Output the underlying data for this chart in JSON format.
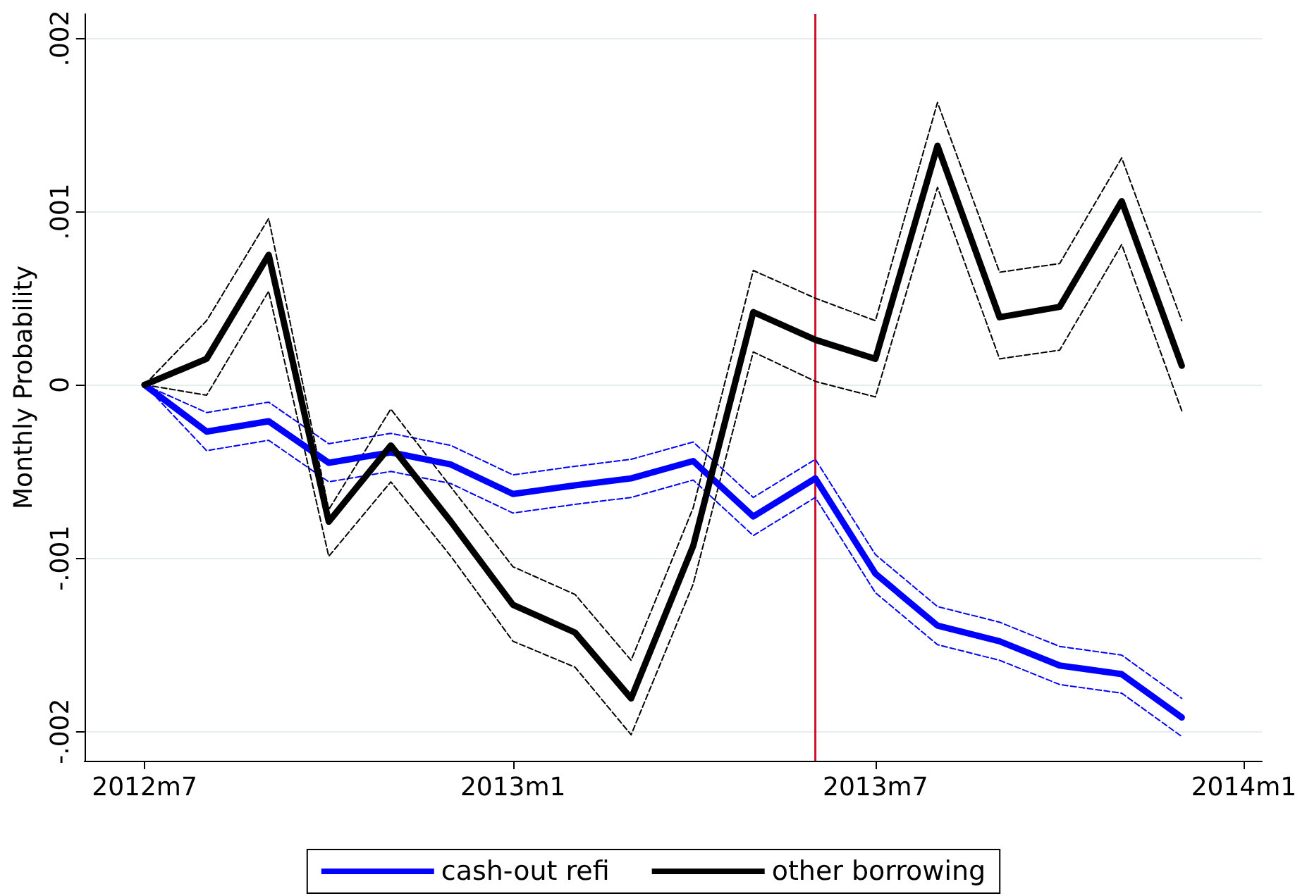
{
  "chart_data": {
    "type": "line",
    "ylabel": "Monthly Probability",
    "x": [
      "2012-07",
      "2012-08",
      "2012-09",
      "2012-10",
      "2012-11",
      "2012-12",
      "2013-01",
      "2013-02",
      "2013-03",
      "2013-04",
      "2013-05",
      "2013-06",
      "2013-07",
      "2013-08",
      "2013-09",
      "2013-10",
      "2013-11",
      "2013-12"
    ],
    "xlim": [
      "2012-06",
      "2014-01-10"
    ],
    "xticks": [
      {
        "value": "2012-07",
        "label": "2012m7"
      },
      {
        "value": "2013-01",
        "label": "2013m1"
      },
      {
        "value": "2013-07",
        "label": "2013m7"
      },
      {
        "value": "2014-01",
        "label": "2014m1"
      }
    ],
    "ylim": [
      -0.00217,
      0.00214
    ],
    "yticks": [
      {
        "value": -0.002,
        "label": "-.002"
      },
      {
        "value": -0.001,
        "label": "-.001"
      },
      {
        "value": 0,
        "label": "0"
      },
      {
        "value": 0.001,
        "label": ".001"
      },
      {
        "value": 0.002,
        "label": ".002"
      }
    ],
    "series": [
      {
        "color": "#0000ff",
        "line_style": "dashed",
        "values": [
          0,
          -0.00016,
          -0.0001,
          -0.00034,
          -0.00028,
          -0.00035,
          -0.00052,
          -0.00047,
          -0.00043,
          -0.00033,
          -0.00065,
          -0.00043,
          -0.00098,
          -0.00128,
          -0.00137,
          -0.00151,
          -0.00156,
          -0.00181
        ]
      },
      {
        "color": "#0000ff",
        "line_style": "dashed",
        "values": [
          0,
          -0.00038,
          -0.00032,
          -0.00056,
          -0.0005,
          -0.00057,
          -0.00074,
          -0.00069,
          -0.00065,
          -0.00055,
          -0.00087,
          -0.00065,
          -0.0012,
          -0.0015,
          -0.00159,
          -0.00173,
          -0.00178,
          -0.00203
        ]
      },
      {
        "color": "#000000",
        "line_style": "dashed",
        "values": [
          0,
          0.00037,
          0.00096,
          -0.00072,
          -0.00014,
          -0.00059,
          -0.00105,
          -0.00121,
          -0.00159,
          -0.00071,
          0.00066,
          0.0005,
          0.00037,
          0.00163,
          0.00065,
          0.0007,
          0.00131,
          0.00037
        ]
      },
      {
        "color": "#000000",
        "line_style": "dashed",
        "values": [
          0,
          -6e-05,
          0.00054,
          -0.00099,
          -0.00056,
          -0.00099,
          -0.00148,
          -0.00163,
          -0.00202,
          -0.00115,
          0.00019,
          2e-05,
          -7e-05,
          0.00114,
          0.00015,
          0.0002,
          0.00081,
          -0.00015
        ]
      },
      {
        "name": "cash-out refi",
        "color": "#0000ff",
        "values": [
          0,
          -0.00027,
          -0.00021,
          -0.00045,
          -0.00039,
          -0.00046,
          -0.00063,
          -0.00058,
          -0.00054,
          -0.00044,
          -0.00076,
          -0.00054,
          -0.00109,
          -0.00139,
          -0.00148,
          -0.00162,
          -0.00167,
          -0.00192
        ]
      },
      {
        "name": "other borrowing",
        "color": "#000000",
        "values": [
          0,
          0.00015,
          0.00075,
          -0.00079,
          -0.00035,
          -0.00079,
          -0.00127,
          -0.00143,
          -0.00181,
          -0.00093,
          0.00042,
          0.00026,
          0.00015,
          0.00138,
          0.00039,
          0.00045,
          0.00106,
          0.00011
        ]
      }
    ],
    "ref_lines": [
      {
        "axis": "x",
        "value": "2013-06",
        "color": "#d0102a"
      }
    ],
    "grid": "y",
    "legend": "bottom",
    "marker": "none",
    "line_style": "solid"
  }
}
